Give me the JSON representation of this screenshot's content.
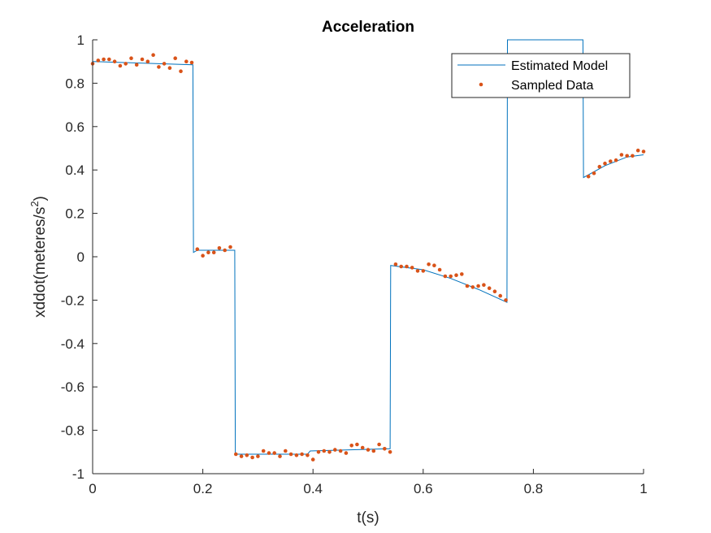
{
  "chart_data": {
    "type": "line",
    "title": "Acceleration",
    "xlabel": "t(s)",
    "ylabel_main": "xddot(meteres/s",
    "ylabel_sup": "2",
    "ylabel_close": ")",
    "xlim": [
      0,
      1
    ],
    "ylim": [
      -1,
      1
    ],
    "xticks": [
      "0",
      "0.2",
      "0.4",
      "0.6",
      "0.8",
      "1"
    ],
    "yticks": [
      "-1",
      "-0.8",
      "-0.6",
      "-0.4",
      "-0.2",
      "0",
      "0.2",
      "0.4",
      "0.6",
      "0.8",
      "1"
    ],
    "grid": false,
    "legend_position": "top-right",
    "colors": {
      "model": "#0072BD",
      "samples": "#D95319",
      "axis": "#262626"
    },
    "series": [
      {
        "name": "Estimated Model",
        "style": "line",
        "x": [
          0,
          0.182,
          0.183,
          0.19,
          0.258,
          0.259,
          0.39,
          0.395,
          0.54,
          0.541,
          0.6,
          0.65,
          0.7,
          0.752,
          0.753,
          0.89,
          0.891,
          0.93,
          0.97,
          1.0
        ],
        "y": [
          0.9,
          0.885,
          0.02,
          0.03,
          0.03,
          -0.91,
          -0.91,
          -0.895,
          -0.885,
          -0.04,
          -0.06,
          -0.1,
          -0.15,
          -0.21,
          1.0,
          1.0,
          0.365,
          0.42,
          0.46,
          0.47
        ]
      },
      {
        "name": "Sampled Data",
        "style": "markers",
        "x": [
          0,
          0.01,
          0.02,
          0.03,
          0.04,
          0.05,
          0.06,
          0.07,
          0.08,
          0.09,
          0.1,
          0.11,
          0.12,
          0.13,
          0.14,
          0.15,
          0.16,
          0.17,
          0.18,
          0.19,
          0.2,
          0.21,
          0.22,
          0.23,
          0.24,
          0.25,
          0.26,
          0.27,
          0.28,
          0.29,
          0.3,
          0.31,
          0.32,
          0.33,
          0.34,
          0.35,
          0.36,
          0.37,
          0.38,
          0.39,
          0.4,
          0.41,
          0.42,
          0.43,
          0.44,
          0.45,
          0.46,
          0.47,
          0.48,
          0.49,
          0.5,
          0.51,
          0.52,
          0.53,
          0.54,
          0.55,
          0.56,
          0.57,
          0.58,
          0.59,
          0.6,
          0.61,
          0.62,
          0.63,
          0.64,
          0.65,
          0.66,
          0.67,
          0.68,
          0.69,
          0.7,
          0.71,
          0.72,
          0.73,
          0.74,
          0.75,
          0.9,
          0.91,
          0.92,
          0.93,
          0.94,
          0.95,
          0.96,
          0.97,
          0.98,
          0.99,
          1.0
        ],
        "y": [
          0.89,
          0.905,
          0.91,
          0.91,
          0.9,
          0.88,
          0.89,
          0.915,
          0.885,
          0.91,
          0.9,
          0.93,
          0.875,
          0.89,
          0.87,
          0.915,
          0.855,
          0.9,
          0.895,
          0.035,
          0.005,
          0.02,
          0.02,
          0.04,
          0.03,
          0.045,
          -0.91,
          -0.92,
          -0.915,
          -0.925,
          -0.92,
          -0.895,
          -0.905,
          -0.905,
          -0.92,
          -0.895,
          -0.91,
          -0.915,
          -0.91,
          -0.915,
          -0.935,
          -0.9,
          -0.895,
          -0.9,
          -0.89,
          -0.895,
          -0.905,
          -0.87,
          -0.865,
          -0.88,
          -0.89,
          -0.895,
          -0.865,
          -0.885,
          -0.9,
          -0.035,
          -0.045,
          -0.045,
          -0.05,
          -0.065,
          -0.065,
          -0.035,
          -0.04,
          -0.06,
          -0.09,
          -0.09,
          -0.085,
          -0.08,
          -0.135,
          -0.14,
          -0.135,
          -0.13,
          -0.145,
          -0.16,
          -0.18,
          -0.2,
          0.37,
          0.385,
          0.415,
          0.43,
          0.44,
          0.445,
          0.47,
          0.465,
          0.465,
          0.49,
          0.485
        ]
      }
    ]
  }
}
